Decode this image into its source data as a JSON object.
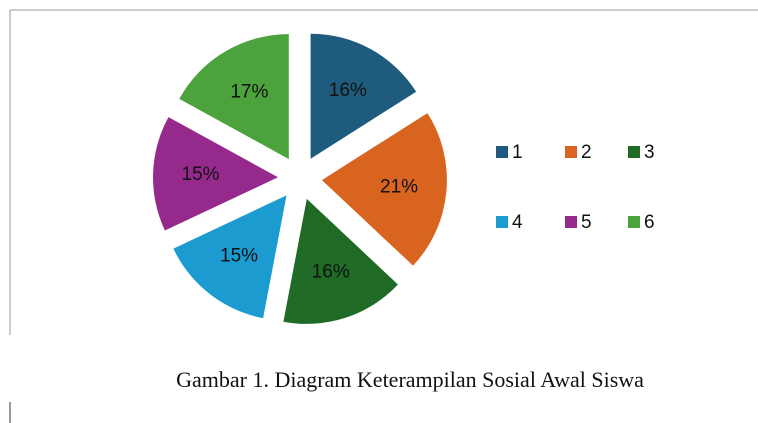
{
  "chart_data": {
    "type": "pie",
    "caption": "Gambar 1. Diagram Keterampilan Sosial Awal Siswa",
    "categories": [
      "1",
      "2",
      "3",
      "4",
      "5",
      "6"
    ],
    "values": [
      16,
      21,
      16,
      15,
      15,
      17
    ],
    "value_labels": [
      "16%",
      "21%",
      "16%",
      "15%",
      "15%",
      "17%"
    ],
    "colors": [
      "#1f5b7c",
      "#d8641f",
      "#1f6b26",
      "#1b9bd0",
      "#962a8c",
      "#4ca23c"
    ],
    "exploded": true,
    "legend": "right"
  }
}
